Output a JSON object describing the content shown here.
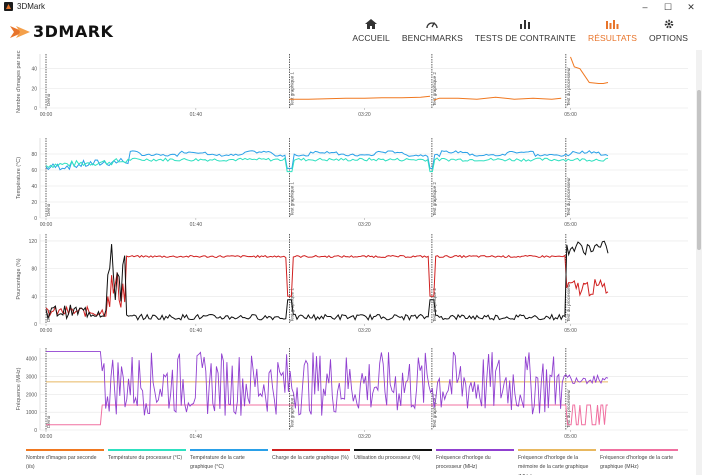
{
  "window": {
    "title": "3DMark",
    "minimize": "–",
    "maximize": "☐",
    "close": "✕"
  },
  "brand": {
    "logo_text": "3DMARK"
  },
  "nav": [
    {
      "label": "ACCUEIL",
      "icon": "home-icon",
      "active": false
    },
    {
      "label": "BENCHMARKS",
      "icon": "gauge-icon",
      "active": false
    },
    {
      "label": "TESTS DE CONTRAINTE",
      "icon": "bar-chart-icon",
      "active": false
    },
    {
      "label": "RÉSULTATS",
      "icon": "results-bars-icon",
      "active": true
    },
    {
      "label": "OPTIONS",
      "icon": "gear-icon",
      "active": false
    }
  ],
  "colors": {
    "accent": "#e8742a",
    "fps": "#f07820",
    "cpu_temp": "#2ee0c0",
    "gpu_temp": "#2aa0e8",
    "gpu_load": "#d02020",
    "cpu_usage": "#101010",
    "cpu_clock": "#9040d0",
    "gpu_mem_clock": "#e8b860",
    "gpu_clock": "#f070a0"
  },
  "markers": [
    "Démo",
    "Test graphique 1",
    "Test graphique 2",
    "Test du processeur"
  ],
  "chart_data": [
    {
      "type": "line",
      "ylabel": "Nombre d'images par sec.",
      "yticks": [
        0,
        20,
        40
      ],
      "ylim": [
        0,
        55
      ],
      "xticks": [
        "00:00",
        "01:40",
        "03:20",
        "05:00"
      ],
      "grid": true,
      "series": [
        {
          "name": "Nombre d'images par seconde (i/s)",
          "color": "#f07820",
          "segments": [
            {
              "x": [
                0,
                0,
                0
              ],
              "y": [
                null,
                null,
                null
              ]
            },
            {
              "x": [
                2.6,
                2.8,
                3.0,
                3.2,
                3.4,
                3.6,
                3.8,
                4.0,
                4.1
              ],
              "y": [
                9,
                9,
                9.5,
                10,
                10,
                10.5,
                10.5,
                11,
                12
              ]
            },
            {
              "x": [
                4.14,
                4.2,
                4.4,
                4.6,
                4.8,
                5.0,
                5.2,
                5.4,
                5.5
              ],
              "y": [
                8,
                10,
                10,
                9,
                11,
                9,
                10,
                9,
                10
              ]
            },
            {
              "x": [
                5.6,
                5.64,
                5.7,
                5.8,
                5.9,
                5.95,
                6.0
              ],
              "y": [
                52,
                42,
                40,
                26,
                25,
                25,
                26
              ]
            }
          ]
        }
      ]
    },
    {
      "type": "line",
      "ylabel": "Température (°C)",
      "yticks": [
        0,
        20,
        40,
        60,
        80
      ],
      "ylim": [
        0,
        100
      ],
      "xticks": [
        "00:00",
        "01:40",
        "03:20",
        "05:00"
      ],
      "grid": true,
      "series": [
        {
          "name": "Température du processeur (°C)",
          "color": "#2ee0c0",
          "base": 70,
          "noise": 3
        },
        {
          "name": "Température de la carte graphique (°C)",
          "color": "#2aa0e8",
          "base": 78,
          "noise": 3
        }
      ]
    },
    {
      "type": "line",
      "ylabel": "Pourcentage (%)",
      "yticks": [
        0,
        40,
        80,
        120
      ],
      "ylim": [
        0,
        130
      ],
      "xticks": [
        "00:00",
        "01:40",
        "03:20",
        "05:00"
      ],
      "grid": true,
      "series": [
        {
          "name": "Charge de la carte graphique (%)",
          "color": "#d02020",
          "base": 100
        },
        {
          "name": "Utilisation du processeur (%)",
          "color": "#101010",
          "base": 8
        }
      ]
    },
    {
      "type": "line",
      "ylabel": "Fréquence (MHz)",
      "yticks": [
        0,
        1000,
        2000,
        3000,
        4000
      ],
      "ylim": [
        0,
        4600
      ],
      "xticks": [
        "00:00",
        "01:40",
        "03:20",
        "05:00"
      ],
      "grid": true,
      "series": [
        {
          "name": "Fréquence d'horloge du processeur (MHz)",
          "color": "#9040d0"
        },
        {
          "name": "Fréquence d'horloge de la mémoire de la carte graphique (MHz)",
          "color": "#e8b860",
          "value": 2700
        },
        {
          "name": "Fréquence d'horloge de la carte graphique (MHz)",
          "color": "#f070a0",
          "value": 1400
        }
      ]
    }
  ],
  "legend": [
    {
      "label": "Nombre d'images par seconde (i/s)",
      "color": "#f07820"
    },
    {
      "label": "Température du processeur (°C)",
      "color": "#2ee0c0"
    },
    {
      "label": "Température de la carte graphique (°C)",
      "color": "#2aa0e8"
    },
    {
      "label": "Charge de la carte graphique (%)",
      "color": "#d02020"
    },
    {
      "label": "Utilisation du processeur (%)",
      "color": "#101010"
    },
    {
      "label": "Fréquence d'horloge du processeur (MHz)",
      "color": "#9040d0"
    },
    {
      "label": "Fréquence d'horloge de la mémoire de la carte graphique (MHz)",
      "color": "#e8b860"
    },
    {
      "label": "Fréquence d'horloge de la carte graphique (MHz)",
      "color": "#f070a0"
    }
  ]
}
